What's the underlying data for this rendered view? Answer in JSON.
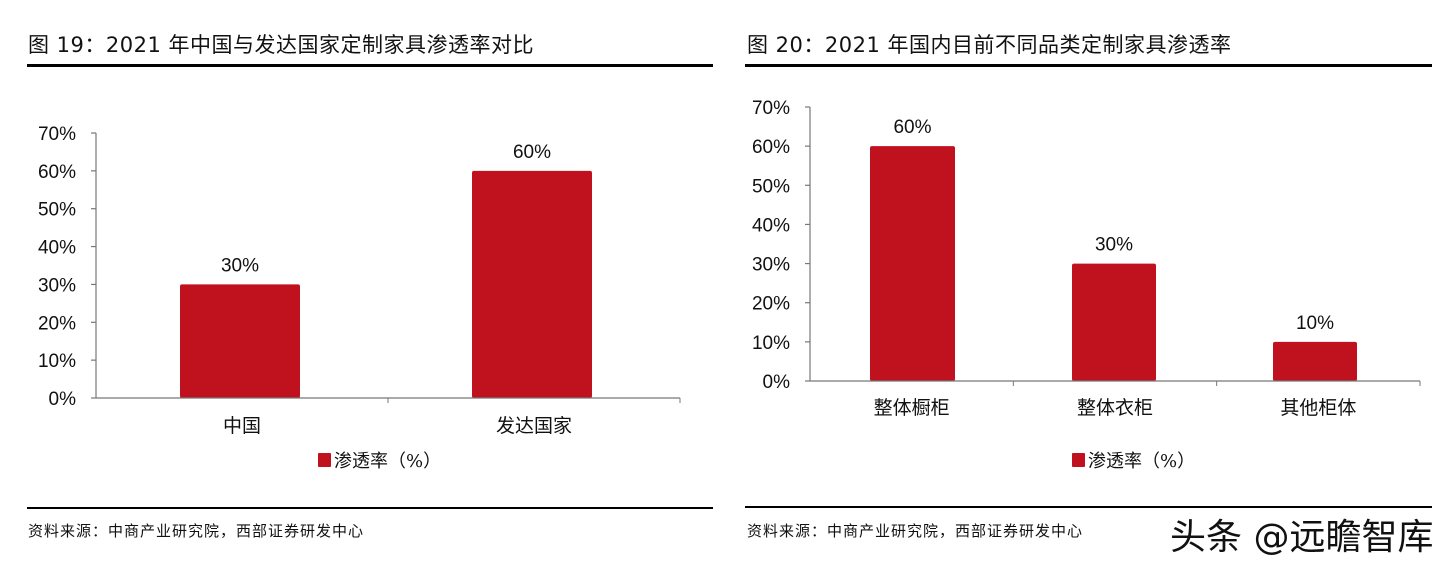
{
  "chart_data": [
    {
      "type": "bar",
      "title": "图 19：2021 年中国与发达国家定制家具渗透率对比",
      "categories": [
        "中国",
        "发达国家"
      ],
      "series": [
        {
          "name": "渗透率（%）",
          "values": [
            30,
            60
          ]
        }
      ],
      "data_labels": [
        "30%",
        "60%"
      ],
      "ylim": [
        0,
        70
      ],
      "yticks": [
        "0%",
        "10%",
        "20%",
        "30%",
        "40%",
        "50%",
        "60%",
        "70%"
      ],
      "grid": false,
      "legend": "bottom",
      "color": "#C0111F",
      "source": "资料来源：中商产业研究院，西部证券研发中心"
    },
    {
      "type": "bar",
      "title": "图 20：2021 年国内目前不同品类定制家具渗透率",
      "categories": [
        "整体橱柜",
        "整体衣柜",
        "其他柜体"
      ],
      "series": [
        {
          "name": "渗透率（%）",
          "values": [
            60,
            30,
            10
          ]
        }
      ],
      "data_labels": [
        "60%",
        "30%",
        "10%"
      ],
      "ylim": [
        0,
        70
      ],
      "yticks": [
        "0%",
        "10%",
        "20%",
        "30%",
        "40%",
        "50%",
        "60%",
        "70%"
      ],
      "grid": false,
      "legend": "bottom",
      "color": "#C0111F",
      "source": "资料来源：中商产业研究院，西部证券研发中心"
    }
  ],
  "watermark": "头条 @远瞻智库"
}
